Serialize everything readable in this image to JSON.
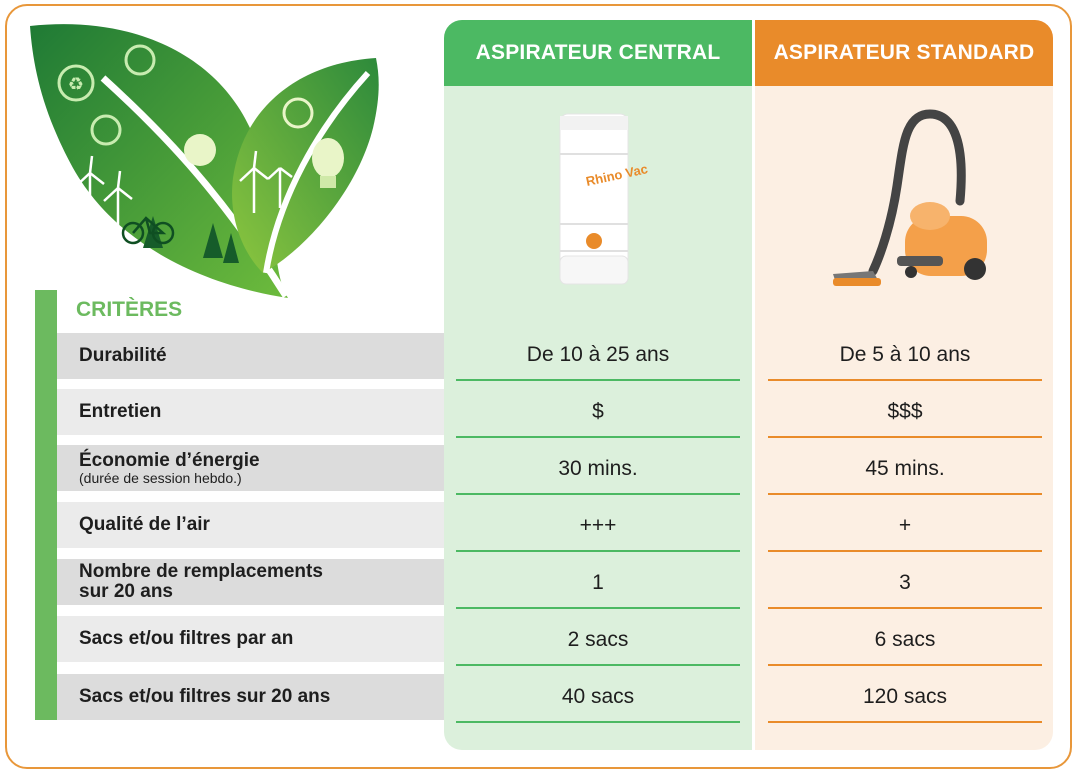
{
  "columns": {
    "central": {
      "title": "ASPIRATEUR CENTRAL",
      "color": "#4cb963",
      "product_brand_text": "Rhino Vac"
    },
    "standard": {
      "title": "ASPIRATEUR STANDARD",
      "color": "#e98b2a"
    }
  },
  "criteria_title": "CRITÈRES",
  "rows": [
    {
      "label": "Durabilité",
      "sub": "",
      "central": "De 10 à 25 ans",
      "standard": "De 5 à 10 ans"
    },
    {
      "label": "Entretien",
      "sub": "",
      "central": "$",
      "standard": "$$$"
    },
    {
      "label": "Économie d’énergie",
      "sub": "(durée de session hebdo.)",
      "central": "30 mins.",
      "standard": "45 mins."
    },
    {
      "label": "Qualité de l’air",
      "sub": "",
      "central": "+++",
      "standard": "+"
    },
    {
      "label": "Nombre de remplacements\nsur 20 ans",
      "sub": "",
      "central": "1",
      "standard": "3"
    },
    {
      "label": "Sacs et/ou filtres par an",
      "sub": "",
      "central": "2 sacs",
      "standard": "6 sacs"
    },
    {
      "label": "Sacs et/ou filtres sur 20 ans",
      "sub": "",
      "central": "40 sacs",
      "standard": "120 sacs"
    }
  ],
  "icons": [
    "eco-leaves-illustration",
    "central-vacuum-image",
    "canister-vacuum-image"
  ]
}
